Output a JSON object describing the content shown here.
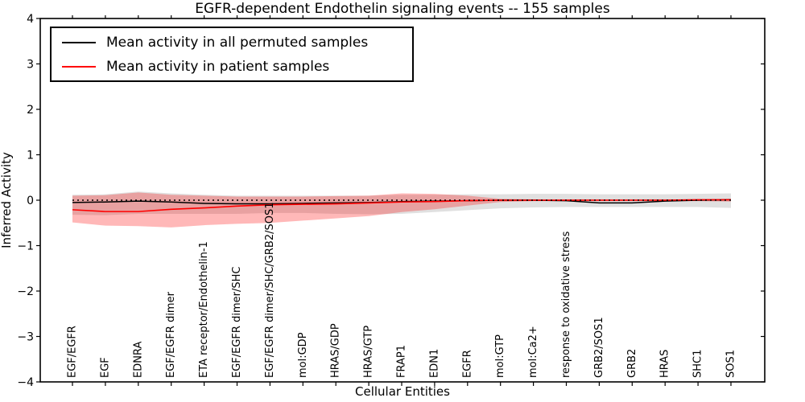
{
  "chart_data": {
    "type": "line",
    "title": "EGFR-dependent Endothelin signaling events -- 155 samples",
    "xlabel": "Cellular Entities",
    "ylabel": "Inferred Activity",
    "ylim": [
      -4,
      4
    ],
    "grid": false,
    "ytick_values": [
      4,
      3,
      2,
      1,
      0,
      -1,
      -2,
      -3,
      -4
    ],
    "ytick_labels": [
      "4",
      "3",
      "2",
      "1",
      "0",
      "−1",
      "−2",
      "−3",
      "−4"
    ],
    "categories": [
      "EGF/EGFR",
      "EGF",
      "EDNRA",
      "EGF/EGFR dimer",
      "ETA receptor/Endothelin-1",
      "EGF/EGFR dimer/SHC",
      "EGF/EGFR dimer/SHC/GRB2/SOS1",
      "mol:GDP",
      "HRAS/GDP",
      "HRAS/GTP",
      "FRAP1",
      "EDN1",
      "EGFR",
      "mol:GTP",
      "mol:Ca2+",
      "response to oxidative stress",
      "GRB2/SOS1",
      "GRB2",
      "HRAS",
      "SHC1",
      "SOS1"
    ],
    "series": [
      {
        "name": "Mean activity in all permuted samples",
        "color": "#000000",
        "line_width": 1.5,
        "values": [
          -0.05,
          -0.04,
          -0.02,
          -0.04,
          -0.07,
          -0.08,
          -0.08,
          -0.07,
          -0.06,
          -0.05,
          -0.03,
          -0.02,
          -0.01,
          0.0,
          0.0,
          -0.01,
          -0.06,
          -0.06,
          -0.02,
          0.0,
          0.01
        ],
        "band_upper": [
          0.12,
          0.13,
          0.19,
          0.15,
          0.12,
          0.1,
          0.1,
          0.1,
          0.1,
          0.1,
          0.12,
          0.12,
          0.13,
          0.13,
          0.14,
          0.14,
          0.13,
          0.13,
          0.13,
          0.14,
          0.15
        ],
        "band_lower": [
          -0.32,
          -0.33,
          -0.3,
          -0.3,
          -0.3,
          -0.3,
          -0.28,
          -0.28,
          -0.3,
          -0.31,
          -0.3,
          -0.26,
          -0.22,
          -0.18,
          -0.16,
          -0.15,
          -0.15,
          -0.15,
          -0.15,
          -0.15,
          -0.17
        ],
        "band_color": "#000000",
        "band_opacity": 0.12
      },
      {
        "name": "Mean activity in patient samples",
        "color": "#ff0000",
        "line_width": 1.6,
        "values": [
          -0.21,
          -0.25,
          -0.25,
          -0.2,
          -0.17,
          -0.13,
          -0.1,
          -0.09,
          -0.08,
          -0.06,
          -0.04,
          -0.03,
          -0.01,
          0.0,
          0.0,
          0.0,
          0.0,
          0.0,
          0.0,
          0.01,
          0.01
        ],
        "band_upper": [
          0.1,
          0.11,
          0.17,
          0.12,
          0.1,
          0.08,
          0.08,
          0.08,
          0.09,
          0.1,
          0.15,
          0.14,
          0.1,
          0.03,
          0.02,
          0.02,
          0.02,
          0.02,
          0.02,
          0.02,
          0.03
        ],
        "band_lower": [
          -0.49,
          -0.56,
          -0.57,
          -0.6,
          -0.55,
          -0.52,
          -0.5,
          -0.45,
          -0.4,
          -0.35,
          -0.26,
          -0.2,
          -0.12,
          -0.04,
          -0.02,
          -0.02,
          -0.02,
          -0.02,
          -0.02,
          -0.02,
          -0.03
        ],
        "band_color": "#ff0000",
        "band_opacity": 0.28
      }
    ],
    "zero_line": {
      "value": 0,
      "color": "#000000",
      "style": "dotted"
    },
    "legend": {
      "position": "upper left",
      "entries": [
        {
          "label": "Mean activity in all permuted samples",
          "color": "#000000"
        },
        {
          "label": "Mean activity in patient samples",
          "color": "#ff0000"
        }
      ]
    }
  }
}
